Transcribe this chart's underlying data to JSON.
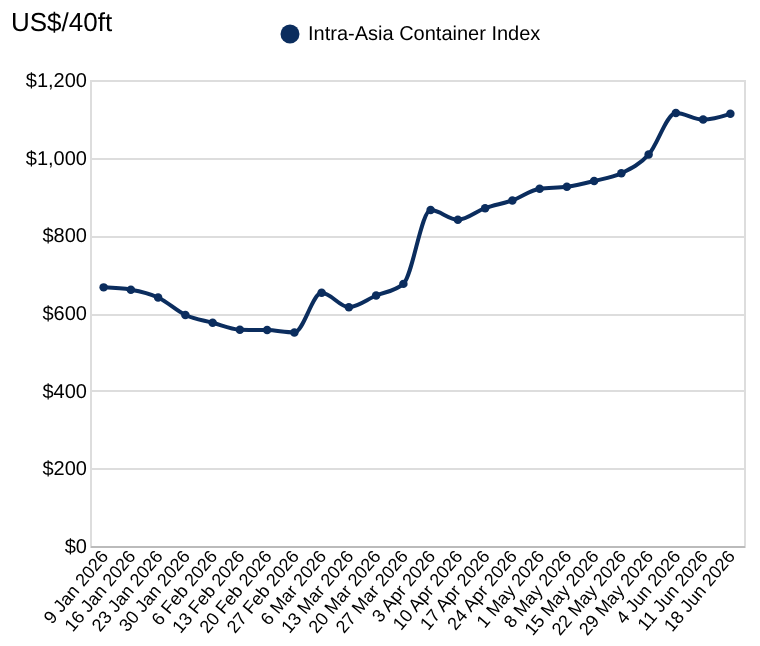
{
  "chart_data": {
    "type": "line",
    "ylabel": "US$/40ft",
    "categories": [
      "9 Jan 2026",
      "16 Jan 2026",
      "23 Jan 2026",
      "30 Jan 2026",
      "6 Feb 2026",
      "13 Feb 2026",
      "20 Feb 2026",
      "27 Feb 2026",
      "6 Mar 2026",
      "13 Mar 2026",
      "20 Mar 2026",
      "27 Mar 2026",
      "3 Apr 2026",
      "10 Apr 2026",
      "17 Apr 2026",
      "24 Apr 2026",
      "1 May 2026",
      "8 May 2026",
      "15 May 2026",
      "22 May 2026",
      "29 May 2026",
      "4 Jun 2026",
      "11 Jun 2026",
      "18 Jun 2026"
    ],
    "series": [
      {
        "name": "Intra-Asia Container Index",
        "color": "#0b2d5e",
        "values": [
          666,
          660,
          640,
          595,
          575,
          557,
          556,
          550,
          652,
          615,
          645,
          675,
          865,
          840,
          870,
          890,
          920,
          925,
          940,
          960,
          1008,
          1115,
          1098,
          1113
        ]
      }
    ],
    "ylim": [
      0,
      1200
    ],
    "yticks": [
      {
        "value": 0,
        "label": "$0"
      },
      {
        "value": 200,
        "label": "$200"
      },
      {
        "value": 400,
        "label": "$400"
      },
      {
        "value": 600,
        "label": "$600"
      },
      {
        "value": 800,
        "label": "$800"
      },
      {
        "value": 1000,
        "label": "$1,000"
      },
      {
        "value": 1200,
        "label": "$1,200"
      }
    ],
    "grid": "y",
    "legend": "top",
    "marker": "circle",
    "line_style": "solid"
  }
}
